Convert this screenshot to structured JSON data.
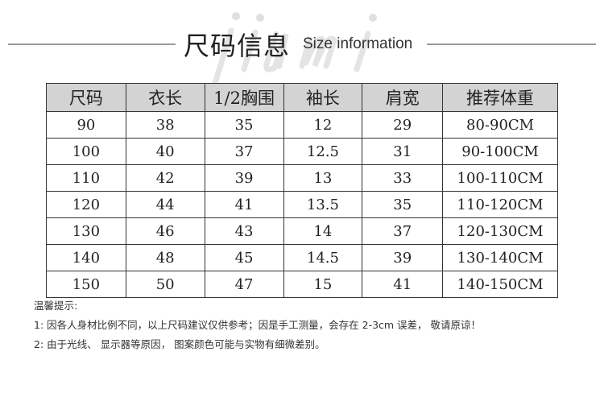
{
  "watermark": "jiumi",
  "title": {
    "cn": "尺码信息",
    "en": "Size information"
  },
  "table": {
    "headers": [
      "尺码",
      "衣长",
      "1/2胸围",
      "袖长",
      "肩宽",
      "推荐体重"
    ],
    "rows": [
      [
        "90",
        "38",
        "35",
        "12",
        "29",
        "80-90CM"
      ],
      [
        "100",
        "40",
        "37",
        "12.5",
        "31",
        "90-100CM"
      ],
      [
        "110",
        "42",
        "39",
        "13",
        "33",
        "100-110CM"
      ],
      [
        "120",
        "44",
        "41",
        "13.5",
        "35",
        "110-120CM"
      ],
      [
        "130",
        "46",
        "43",
        "14",
        "37",
        "120-130CM"
      ],
      [
        "140",
        "48",
        "45",
        "14.5",
        "39",
        "130-140CM"
      ],
      [
        "150",
        "50",
        "47",
        "15",
        "41",
        "140-150CM"
      ]
    ]
  },
  "notes": {
    "heading": "温馨提示:",
    "items": [
      "1: 因各人身材比例不同，以上尺码建议仅供参考；因是手工测量，会存在 2-3cm 误差， 敬请原谅！",
      "2: 由于光线、 显示器等原因， 图案颜色可能与实物有细微差别。"
    ]
  }
}
